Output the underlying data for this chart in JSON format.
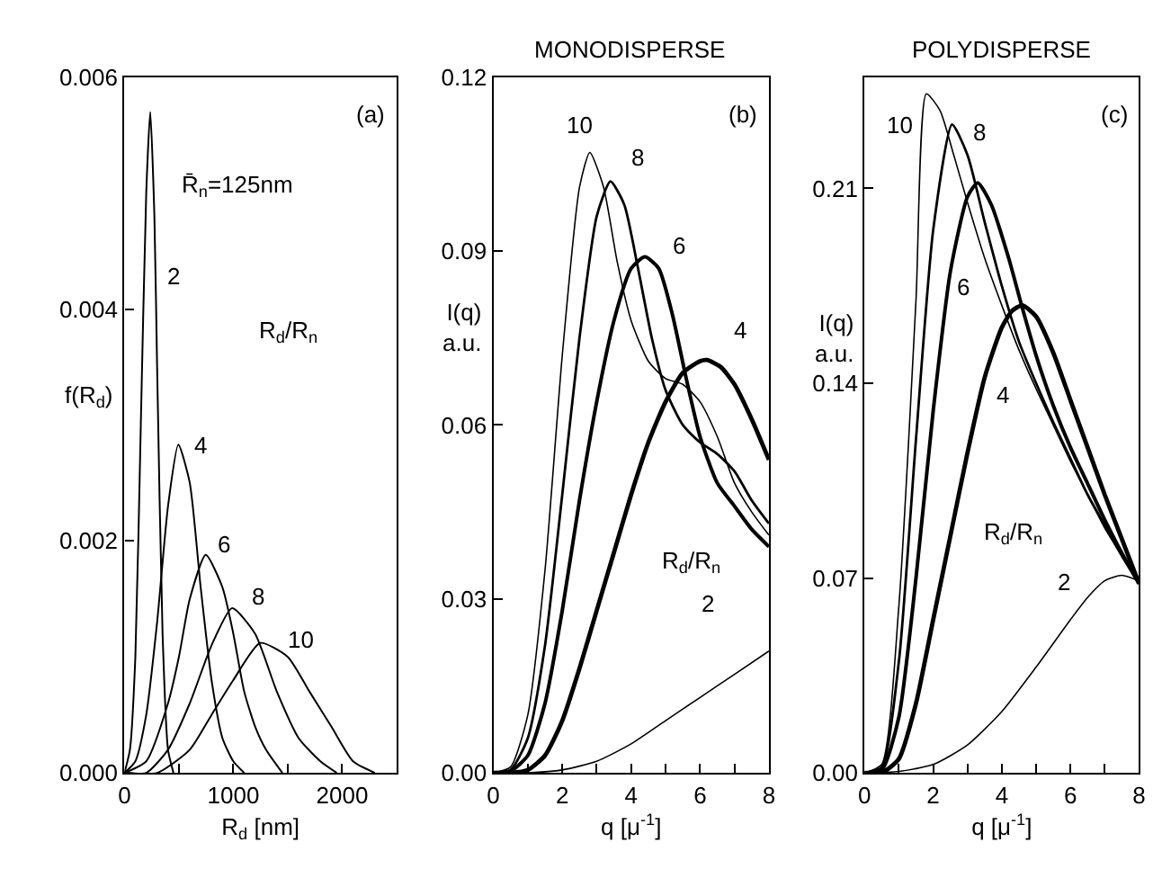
{
  "chart_data": [
    {
      "type": "line",
      "xlabel": "R$_{d}$ [nm]",
      "ylabel": "f(R$_{d}$)",
      "annotations": [
        "(a)",
        "R̄$_{n}$=125nm",
        "R$_{d}$/R$_{n}$"
      ],
      "xlim": [
        0,
        2500
      ],
      "ylim": [
        0,
        0.006
      ],
      "xticks": [
        0,
        {
          "value": 500,
          "label": null
        },
        1000,
        {
          "value": 1500,
          "label": null
        },
        2000
      ],
      "yticks": [
        {
          "value": 0,
          "label": "0.000"
        },
        {
          "value": 0.002,
          "label": "0.002"
        },
        {
          "value": 0.004,
          "label": "0.004"
        },
        {
          "value": 0.006,
          "label": "0.006"
        }
      ],
      "series": [
        {
          "name": "2",
          "color": "#000000",
          "x": [
            0,
            50,
            100,
            150,
            200,
            237,
            275,
            300,
            350,
            400,
            450
          ],
          "values": [
            0,
            0.0002,
            0.001,
            0.003,
            0.005,
            0.0057,
            0.0048,
            0.0035,
            0.0012,
            0.0002,
            0
          ]
        },
        {
          "name": "4",
          "color": "#000000",
          "x": [
            0,
            100,
            200,
            300,
            400,
            495,
            600,
            700,
            800,
            900,
            1000,
            1100
          ],
          "values": [
            0,
            0.0001,
            0.0005,
            0.0013,
            0.0023,
            0.00283,
            0.0025,
            0.0016,
            0.0008,
            0.0003,
            0.0001,
            0
          ]
        },
        {
          "name": "6",
          "color": "#000000",
          "x": [
            0,
            200,
            400,
            500,
            600,
            747,
            900,
            1000,
            1100,
            1200,
            1300,
            1450
          ],
          "values": [
            0,
            0.0001,
            0.0006,
            0.001,
            0.0015,
            0.00188,
            0.0016,
            0.0012,
            0.0007,
            0.0004,
            0.0002,
            0
          ]
        },
        {
          "name": "8",
          "color": "#000000",
          "x": [
            0,
            200,
            400,
            600,
            800,
            989,
            1200,
            1400,
            1600,
            1800,
            1950
          ],
          "values": [
            0,
            0,
            0.0002,
            0.0006,
            0.0011,
            0.00142,
            0.0012,
            0.0007,
            0.0003,
            0.0001,
            0
          ]
        },
        {
          "name": "10",
          "color": "#000000",
          "x": [
            0,
            300,
            600,
            800,
            1000,
            1247,
            1500,
            1700,
            1900,
            2100,
            2300
          ],
          "values": [
            0,
            0,
            0.0002,
            0.0005,
            0.0008,
            0.00112,
            0.001,
            0.0007,
            0.0004,
            0.0001,
            0
          ]
        }
      ]
    },
    {
      "type": "line",
      "title": "MONODISPERSE",
      "xlabel": "q [μ$^{-1}$]",
      "ylabel": "I(q)\na.u.",
      "annotations": [
        "(b)",
        "R$_{d}$/R$_{n}$"
      ],
      "xlim": [
        0,
        8
      ],
      "ylim": [
        0,
        0.12
      ],
      "xticks": [
        0,
        {
          "value": 1,
          "label": null
        },
        2,
        {
          "value": 3,
          "label": null
        },
        4,
        {
          "value": 5,
          "label": null
        },
        6,
        {
          "value": 7,
          "label": null
        },
        8
      ],
      "yticks": [
        {
          "value": 0,
          "label": "0.00"
        },
        0.03,
        0.06,
        0.09,
        0.12
      ],
      "series": [
        {
          "name": "10",
          "color": "#000000",
          "x": [
            0,
            0.5,
            1,
            1.5,
            2,
            2.5,
            2.8,
            3.2,
            3.6,
            4,
            4.5,
            5,
            5.5,
            6,
            6.5,
            7,
            7.5,
            8
          ],
          "values": [
            0,
            0.001,
            0.01,
            0.035,
            0.072,
            0.101,
            0.107,
            0.101,
            0.088,
            0.078,
            0.071,
            0.068,
            0.067,
            0.064,
            0.058,
            0.05,
            0.045,
            0.041
          ]
        },
        {
          "name": "8",
          "color": "#000000",
          "x": [
            0,
            0.5,
            1,
            1.5,
            2,
            2.5,
            3,
            3.4,
            3.8,
            4.2,
            4.6,
            5,
            5.5,
            6,
            6.5,
            7,
            7.5,
            8
          ],
          "values": [
            0,
            0.0005,
            0.006,
            0.022,
            0.048,
            0.075,
            0.096,
            0.102,
            0.098,
            0.087,
            0.075,
            0.066,
            0.06,
            0.057,
            0.055,
            0.052,
            0.047,
            0.043
          ]
        },
        {
          "name": "6",
          "color": "#000000",
          "x": [
            0,
            0.5,
            1,
            1.5,
            2,
            2.5,
            3,
            3.5,
            4,
            4.4,
            4.8,
            5.2,
            5.6,
            6,
            6.5,
            7,
            7.5,
            8
          ],
          "values": [
            0,
            0.0003,
            0.003,
            0.012,
            0.028,
            0.047,
            0.064,
            0.078,
            0.087,
            0.089,
            0.087,
            0.079,
            0.068,
            0.058,
            0.05,
            0.046,
            0.042,
            0.039
          ]
        },
        {
          "name": "4",
          "color": "#000000",
          "x": [
            0,
            0.5,
            1,
            1.5,
            2,
            2.5,
            3,
            3.5,
            4,
            4.5,
            5,
            5.5,
            6,
            6.2,
            6.6,
            7,
            7.5,
            8
          ],
          "values": [
            0,
            0,
            0.0005,
            0.003,
            0.009,
            0.018,
            0.028,
            0.038,
            0.048,
            0.057,
            0.064,
            0.069,
            0.071,
            0.0712,
            0.07,
            0.067,
            0.061,
            0.054
          ]
        },
        {
          "name": "2",
          "color": "#000000",
          "x": [
            0,
            1,
            2,
            3,
            4,
            5,
            6,
            7,
            8
          ],
          "values": [
            0,
            0,
            0.0005,
            0.002,
            0.005,
            0.009,
            0.013,
            0.017,
            0.021
          ]
        }
      ]
    },
    {
      "type": "line",
      "title": "POLYDISPERSE",
      "xlabel": "q [μ$^{-1}$]",
      "ylabel": "I(q)\na.u.",
      "annotations": [
        "(c)",
        "R$_{d}$/R$_{n}$"
      ],
      "xlim": [
        0,
        8
      ],
      "ylim": [
        0,
        0.25
      ],
      "xticks": [
        0,
        {
          "value": 1,
          "label": null
        },
        2,
        {
          "value": 3,
          "label": null
        },
        4,
        {
          "value": 5,
          "label": null
        },
        6,
        {
          "value": 7,
          "label": null
        },
        8
      ],
      "yticks": [
        {
          "value": 0,
          "label": "0.00"
        },
        0.07,
        0.14,
        0.21
      ],
      "series": [
        {
          "name": "10",
          "color": "#000000",
          "x": [
            0,
            0.5,
            1,
            1.5,
            1.8,
            2.2,
            2.6,
            3,
            3.5,
            4,
            4.5,
            5,
            5.5,
            6,
            6.5,
            7,
            7.5,
            8
          ],
          "values": [
            0,
            0.003,
            0.06,
            0.17,
            0.244,
            0.238,
            0.222,
            0.205,
            0.185,
            0.168,
            0.152,
            0.138,
            0.125,
            0.112,
            0.1,
            0.088,
            0.078,
            0.068
          ]
        },
        {
          "name": "8",
          "color": "#000000",
          "x": [
            0,
            0.5,
            1,
            1.5,
            2,
            2.55,
            3,
            3.5,
            4,
            4.5,
            5,
            5.5,
            6,
            6.5,
            7,
            7.5,
            8
          ],
          "values": [
            0,
            0.002,
            0.04,
            0.12,
            0.195,
            0.233,
            0.222,
            0.198,
            0.175,
            0.155,
            0.14,
            0.126,
            0.113,
            0.1,
            0.089,
            0.078,
            0.068
          ]
        },
        {
          "name": "6",
          "color": "#000000",
          "x": [
            0,
            0.5,
            1,
            1.5,
            2,
            2.5,
            3,
            3.3,
            3.7,
            4.2,
            4.6,
            5,
            5.5,
            6,
            6.5,
            7,
            7.5,
            8
          ],
          "values": [
            0,
            0.001,
            0.02,
            0.07,
            0.13,
            0.18,
            0.207,
            0.212,
            0.204,
            0.185,
            0.167,
            0.15,
            0.132,
            0.117,
            0.104,
            0.091,
            0.079,
            0.068
          ]
        },
        {
          "name": "4",
          "color": "#000000",
          "x": [
            0,
            0.5,
            1,
            1.5,
            2,
            2.5,
            3,
            3.5,
            4,
            4.3,
            4.6,
            5,
            5.5,
            6,
            6.5,
            7,
            7.5,
            8
          ],
          "values": [
            0,
            0,
            0.005,
            0.025,
            0.055,
            0.085,
            0.115,
            0.142,
            0.16,
            0.166,
            0.168,
            0.164,
            0.151,
            0.134,
            0.117,
            0.1,
            0.084,
            0.068
          ]
        },
        {
          "name": "2",
          "color": "#000000",
          "x": [
            0,
            1,
            2,
            3,
            4,
            5,
            6,
            6.5,
            7,
            7.5,
            8
          ],
          "values": [
            0,
            0.0005,
            0.003,
            0.01,
            0.022,
            0.038,
            0.055,
            0.063,
            0.069,
            0.071,
            0.069
          ]
        }
      ]
    }
  ]
}
